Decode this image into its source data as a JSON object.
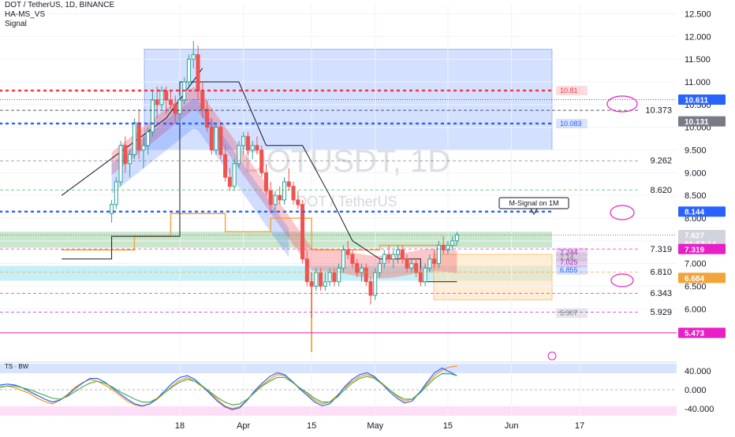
{
  "header": {
    "symbol_line": "DOT / TetherUS, 1D, BINANCE",
    "indicator1": "HA-MS_VS",
    "indicator2": "Signal"
  },
  "watermark": {
    "main": "DOTUSDT, 1D",
    "sub": "DOT / TetherUS"
  },
  "annotation": {
    "text": "M-Signal on 1M"
  },
  "oscillator": {
    "label": "TS · BW"
  },
  "chart_data": [
    {
      "type": "candlestick",
      "title": "DOT / TetherUS, 1D, BINANCE",
      "x_tick_labels": [
        "18",
        "Apr",
        "15",
        "May",
        "15",
        "Jun",
        "17"
      ],
      "y_tick_labels": [
        "12.500",
        "12.000",
        "11.500",
        "11.000",
        "10.500",
        "10.000",
        "9.500",
        "9.000",
        "8.500",
        "8.000",
        "7.500",
        "7.000",
        "6.500",
        "6.000"
      ],
      "ylim": [
        5.0,
        12.7
      ],
      "x_range_days": [
        0,
        131
      ],
      "x_ticks_day": [
        0,
        14,
        29,
        43,
        59,
        73,
        88
      ],
      "price_tags": [
        {
          "value": "10.611",
          "color": "#2962ff"
        },
        {
          "value": "10.131",
          "color": "#787b86"
        },
        {
          "value": "8.144",
          "color": "#2962ff"
        },
        {
          "value": "7.627",
          "color": "#d1d4dc",
          "sub": "01:53:14",
          "dark_text": true
        },
        {
          "value": "7.319",
          "color": "#e91ec6"
        },
        {
          "value": "6.684",
          "color": "#f2a33a"
        },
        {
          "value": "5.473",
          "color": "#e91ec6"
        }
      ],
      "level_labels": [
        {
          "value": 10.373,
          "text": "10.373"
        },
        {
          "value": 9.262,
          "text": "9.262"
        },
        {
          "value": 8.62,
          "text": "8.620"
        },
        {
          "value": 7.319,
          "text": "7.319"
        },
        {
          "value": 6.81,
          "text": "6.810"
        },
        {
          "value": 6.343,
          "text": "6.343"
        },
        {
          "value": 5.929,
          "text": "5.929"
        }
      ],
      "box_labels": [
        {
          "value": 10.81,
          "text": "10.81",
          "color": "#f23645"
        },
        {
          "value": 10.083,
          "text": "10.083",
          "color": "#2962ff"
        },
        {
          "value": 7.244,
          "text": "7.244",
          "color": "#9c27b0"
        },
        {
          "value": 7.14,
          "text": "7.14",
          "color": "#787b86"
        },
        {
          "value": 7.025,
          "text": "7.025",
          "color": "#9c27b0"
        },
        {
          "value": 6.855,
          "text": "6.855",
          "color": "#2962ff"
        },
        {
          "value": 5.907,
          "text": "5.907",
          "color": "#787b86"
        }
      ],
      "candles": [
        [
          -15,
          8.1,
          8.4,
          7.9,
          8.3
        ],
        [
          -14,
          8.3,
          8.9,
          8.2,
          8.8
        ],
        [
          -13,
          8.8,
          9.7,
          8.7,
          9.6
        ],
        [
          -12,
          9.6,
          9.8,
          9.0,
          9.2
        ],
        [
          -11,
          9.2,
          9.5,
          8.9,
          9.4
        ],
        [
          -10,
          9.4,
          10.2,
          9.3,
          10.1
        ],
        [
          -9,
          10.1,
          10.4,
          9.3,
          9.5
        ],
        [
          -8,
          9.5,
          9.8,
          9.1,
          9.6
        ],
        [
          -7,
          9.6,
          10.0,
          9.4,
          9.9
        ],
        [
          -6,
          9.9,
          10.8,
          9.8,
          10.6
        ],
        [
          -5,
          10.6,
          10.9,
          10.2,
          10.5
        ],
        [
          -4,
          10.5,
          10.9,
          10.4,
          10.8
        ],
        [
          -3,
          10.8,
          10.9,
          10.3,
          10.6
        ],
        [
          -2,
          10.6,
          10.8,
          10.4,
          10.5
        ],
        [
          -1,
          10.5,
          10.7,
          10.1,
          10.3
        ],
        [
          0,
          10.3,
          10.7,
          10.1,
          10.6
        ],
        [
          1,
          10.6,
          11.1,
          10.5,
          11.0
        ],
        [
          2,
          11.0,
          11.6,
          10.9,
          11.5
        ],
        [
          3,
          11.5,
          11.9,
          11.3,
          11.6
        ],
        [
          4,
          11.6,
          11.8,
          10.6,
          10.8
        ],
        [
          5,
          10.8,
          11.0,
          10.2,
          10.4
        ],
        [
          6,
          10.4,
          10.6,
          9.9,
          10.0
        ],
        [
          7,
          10.0,
          10.2,
          9.4,
          9.5
        ],
        [
          8,
          9.5,
          10.1,
          9.4,
          10.0
        ],
        [
          9,
          10.0,
          10.1,
          9.3,
          9.4
        ],
        [
          10,
          9.4,
          9.6,
          8.8,
          8.9
        ],
        [
          11,
          8.9,
          9.1,
          8.6,
          8.7
        ],
        [
          12,
          8.7,
          9.3,
          8.6,
          9.2
        ],
        [
          13,
          9.2,
          9.7,
          9.1,
          9.6
        ],
        [
          14,
          9.6,
          9.9,
          9.4,
          9.8
        ],
        [
          15,
          9.8,
          9.9,
          9.4,
          9.5
        ],
        [
          16,
          9.5,
          9.7,
          9.3,
          9.6
        ],
        [
          17,
          9.6,
          9.8,
          9.4,
          9.5
        ],
        [
          18,
          9.5,
          9.6,
          8.9,
          9.0
        ],
        [
          19,
          9.0,
          9.2,
          8.5,
          8.6
        ],
        [
          20,
          8.6,
          8.8,
          8.1,
          8.3
        ],
        [
          21,
          8.3,
          8.6,
          8.1,
          8.5
        ],
        [
          22,
          8.5,
          8.7,
          8.3,
          8.4
        ],
        [
          23,
          8.4,
          8.9,
          8.3,
          8.8
        ],
        [
          24,
          8.8,
          9.1,
          8.6,
          8.7
        ],
        [
          25,
          8.7,
          8.8,
          8.3,
          8.4
        ],
        [
          26,
          8.4,
          8.6,
          8.2,
          8.3
        ],
        [
          27,
          8.3,
          8.4,
          7.0,
          7.1
        ],
        [
          28,
          7.1,
          7.3,
          6.5,
          6.6
        ],
        [
          29,
          6.6,
          6.8,
          5.8,
          6.5
        ],
        [
          30,
          6.5,
          6.9,
          6.4,
          6.8
        ],
        [
          31,
          6.8,
          6.9,
          6.4,
          6.5
        ],
        [
          32,
          6.5,
          6.8,
          6.4,
          6.6
        ],
        [
          33,
          6.6,
          6.9,
          6.5,
          6.8
        ],
        [
          34,
          6.8,
          6.9,
          6.5,
          6.6
        ],
        [
          35,
          6.6,
          7.0,
          6.5,
          6.9
        ],
        [
          36,
          6.9,
          7.4,
          6.8,
          7.3
        ],
        [
          37,
          7.3,
          7.5,
          7.1,
          7.2
        ],
        [
          38,
          7.2,
          7.3,
          6.9,
          7.0
        ],
        [
          39,
          7.0,
          7.1,
          6.7,
          6.8
        ],
        [
          40,
          6.8,
          7.0,
          6.6,
          6.9
        ],
        [
          41,
          6.9,
          7.0,
          6.5,
          6.6
        ],
        [
          42,
          6.6,
          6.7,
          6.1,
          6.3
        ],
        [
          43,
          6.3,
          6.9,
          6.2,
          6.8
        ],
        [
          44,
          6.8,
          7.1,
          6.7,
          7.0
        ],
        [
          45,
          7.0,
          7.3,
          6.9,
          7.2
        ],
        [
          46,
          7.2,
          7.4,
          7.0,
          7.1
        ],
        [
          47,
          7.1,
          7.3,
          6.9,
          7.2
        ],
        [
          48,
          7.2,
          7.4,
          7.0,
          7.3
        ],
        [
          49,
          7.3,
          7.4,
          7.0,
          7.1
        ],
        [
          50,
          7.1,
          7.2,
          6.8,
          6.9
        ],
        [
          51,
          6.9,
          7.1,
          6.8,
          7.0
        ],
        [
          52,
          7.0,
          7.1,
          6.7,
          6.8
        ],
        [
          53,
          6.8,
          6.9,
          6.5,
          6.6
        ],
        [
          54,
          6.6,
          7.0,
          6.5,
          6.9
        ],
        [
          55,
          6.9,
          7.2,
          6.8,
          7.1
        ],
        [
          56,
          7.1,
          7.3,
          6.9,
          7.0
        ],
        [
          57,
          7.0,
          7.5,
          6.9,
          7.4
        ],
        [
          58,
          7.4,
          7.6,
          7.2,
          7.3
        ],
        [
          59,
          7.3,
          7.5,
          7.2,
          7.4
        ],
        [
          60,
          7.4,
          7.6,
          7.3,
          7.5
        ],
        [
          61,
          7.5,
          7.7,
          7.4,
          7.63
        ]
      ]
    },
    {
      "type": "line",
      "title": "TS · BW",
      "y_tick_labels": [
        "40.000",
        "0.000",
        "-40.000"
      ],
      "ylim": [
        -55,
        55
      ],
      "series": [
        {
          "color": "#f7931a",
          "values": [
            5,
            8,
            4,
            -2,
            -8,
            -18,
            -25,
            -30,
            -22,
            -10,
            5,
            15,
            22,
            18,
            10,
            0,
            -12,
            -24,
            -32,
            -35,
            -30,
            -20,
            -6,
            8,
            20,
            26,
            18,
            6,
            -6,
            -20,
            -34,
            -40,
            -36,
            -22,
            -4,
            10,
            22,
            32,
            30,
            18,
            4,
            -8,
            -22,
            -30,
            -26,
            -12,
            4,
            18,
            28,
            32,
            26,
            14,
            0,
            -14,
            -24,
            -20,
            -6,
            12,
            30,
            42,
            48,
            50
          ]
        },
        {
          "color": "#2962ff",
          "values": [
            10,
            12,
            10,
            4,
            -4,
            -12,
            -20,
            -26,
            -22,
            -12,
            2,
            14,
            24,
            24,
            16,
            4,
            -8,
            -20,
            -30,
            -34,
            -30,
            -18,
            -2,
            14,
            26,
            30,
            22,
            8,
            -8,
            -24,
            -36,
            -42,
            -38,
            -22,
            -2,
            14,
            28,
            36,
            32,
            18,
            2,
            -12,
            -26,
            -34,
            -30,
            -14,
            6,
            22,
            32,
            36,
            28,
            12,
            -4,
            -18,
            -28,
            -24,
            -6,
            16,
            36,
            46,
            38,
            30
          ]
        },
        {
          "color": "#4caf50",
          "values": [
            6,
            8,
            8,
            4,
            0,
            -6,
            -12,
            -18,
            -20,
            -14,
            -4,
            6,
            14,
            18,
            14,
            6,
            -4,
            -12,
            -20,
            -26,
            -26,
            -18,
            -6,
            6,
            16,
            22,
            18,
            8,
            -4,
            -16,
            -26,
            -32,
            -30,
            -20,
            -6,
            8,
            18,
            26,
            26,
            16,
            4,
            -6,
            -18,
            -26,
            -26,
            -16,
            0,
            14,
            24,
            28,
            24,
            12,
            0,
            -12,
            -20,
            -20,
            -8,
            8,
            24,
            34,
            34,
            30
          ]
        }
      ]
    }
  ]
}
